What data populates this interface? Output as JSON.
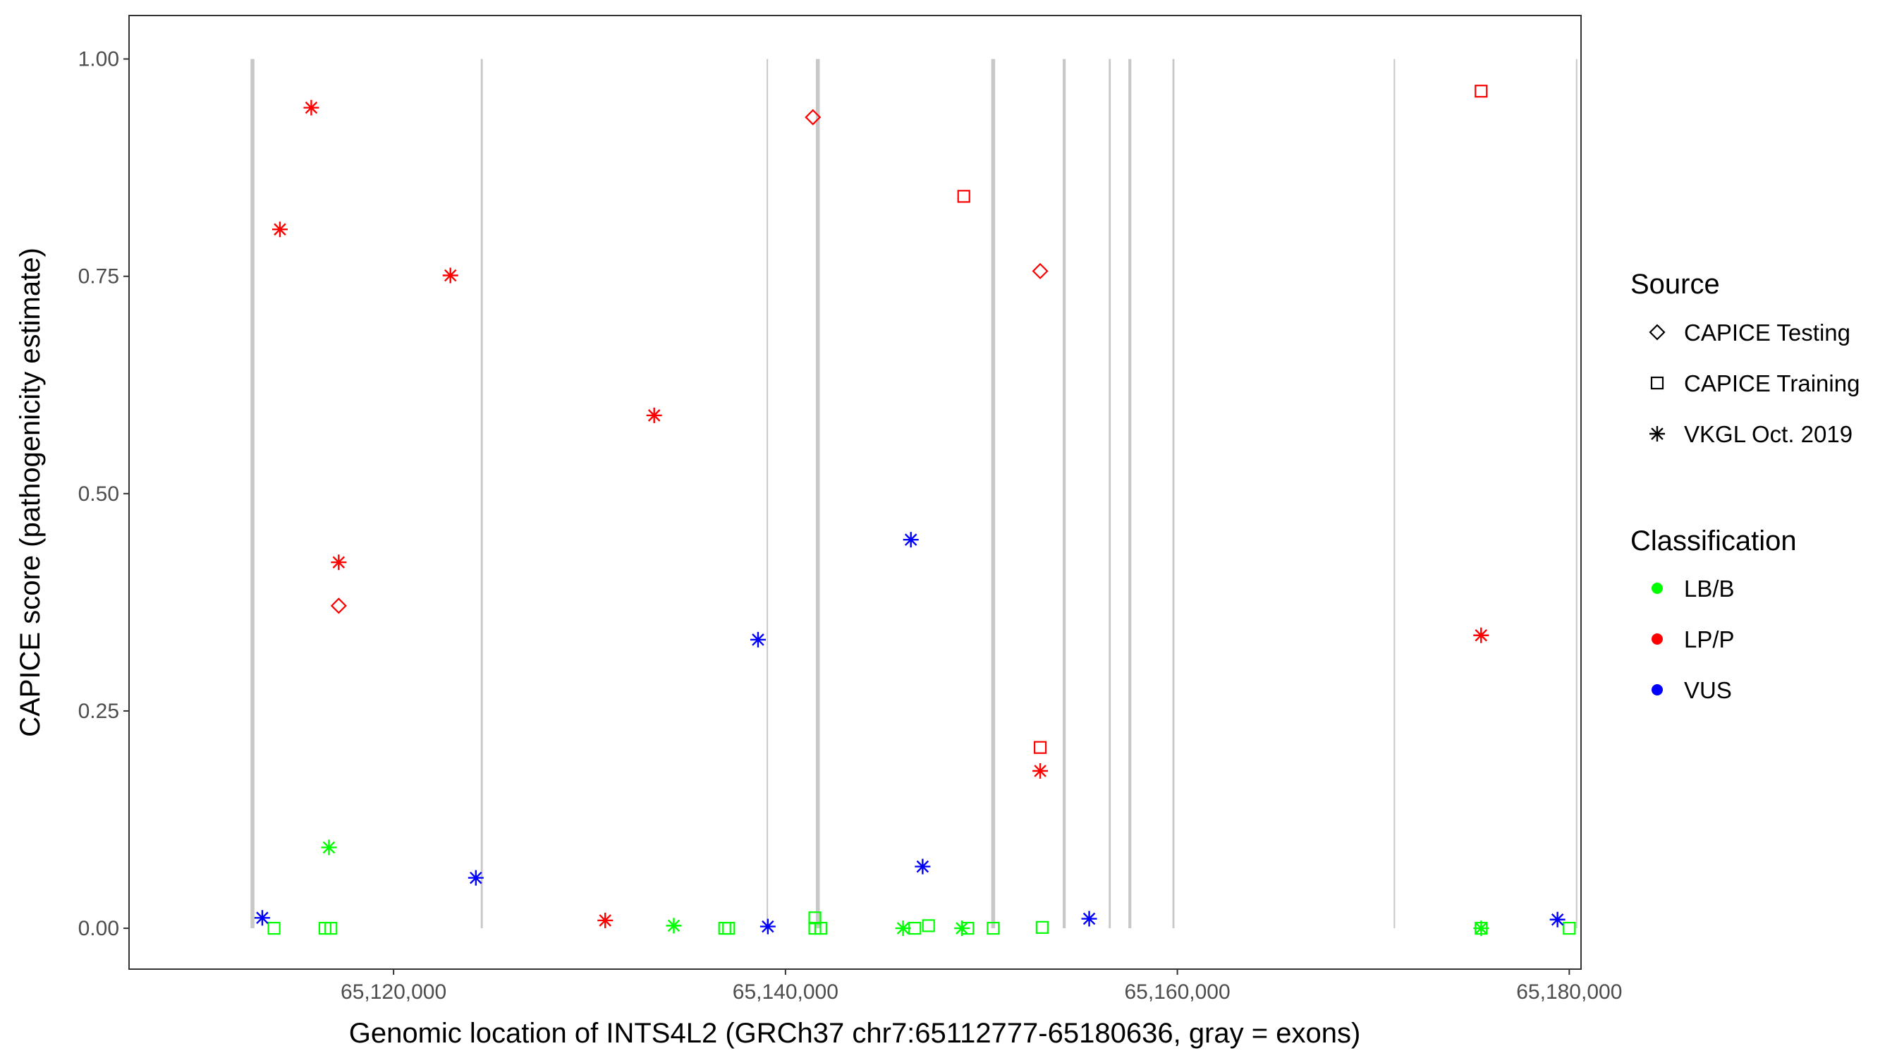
{
  "chart_data": {
    "type": "scatter",
    "title": "",
    "xlabel": "Genomic location of INTS4L2 (GRCh37 chr7:65112777-65180636, gray = exons)",
    "ylabel": "CAPICE score (pathogenicity estimate)",
    "xlim": [
      65106500,
      65180600
    ],
    "ylim": [
      -0.047,
      1.05
    ],
    "x_ticks": [
      65120000,
      65140000,
      65160000,
      65180000
    ],
    "x_tick_labels": [
      "65,120,000",
      "65,140,000",
      "65,160,000",
      "65,180,000"
    ],
    "y_ticks": [
      0,
      0.25,
      0.5,
      0.75,
      1
    ],
    "y_tick_labels": [
      "0.00",
      "0.25",
      "0.50",
      "0.75",
      "1.00"
    ],
    "grid": false,
    "legend_position": "right",
    "exons": [
      [
        65112700,
        65112900
      ],
      [
        65124450,
        65124550
      ],
      [
        65139050,
        65139100
      ],
      [
        65141550,
        65141750
      ],
      [
        65150500,
        65150700
      ],
      [
        65154150,
        65154300
      ],
      [
        65156500,
        65156600
      ],
      [
        65157500,
        65157650
      ],
      [
        65159750,
        65159850
      ],
      [
        65171050,
        65171100
      ],
      [
        65180350,
        65180400
      ]
    ],
    "exon_color": "#c8c8c8",
    "legend_source": {
      "title": "Source",
      "entries": [
        {
          "label": "CAPICE Testing",
          "shape": "diamond"
        },
        {
          "label": "CAPICE Training",
          "shape": "square"
        },
        {
          "label": "VKGL Oct. 2019",
          "shape": "asterisk"
        }
      ]
    },
    "legend_classification": {
      "title": "Classification",
      "entries": [
        {
          "label": "LB/B",
          "color": "#00ff00"
        },
        {
          "label": "LP/P",
          "color": "#ff0000"
        },
        {
          "label": "VUS",
          "color": "#0000ff"
        }
      ]
    },
    "points": [
      {
        "x": 65115800,
        "y": 0.944,
        "shape": "asterisk",
        "class": "LP/P"
      },
      {
        "x": 65114200,
        "y": 0.804,
        "shape": "asterisk",
        "class": "LP/P"
      },
      {
        "x": 65122900,
        "y": 0.751,
        "shape": "asterisk",
        "class": "LP/P"
      },
      {
        "x": 65133300,
        "y": 0.59,
        "shape": "asterisk",
        "class": "LP/P"
      },
      {
        "x": 65117200,
        "y": 0.421,
        "shape": "asterisk",
        "class": "LP/P"
      },
      {
        "x": 65130800,
        "y": 0.009,
        "shape": "asterisk",
        "class": "LP/P"
      },
      {
        "x": 65153000,
        "y": 0.181,
        "shape": "asterisk",
        "class": "LP/P"
      },
      {
        "x": 65175500,
        "y": 0.337,
        "shape": "asterisk",
        "class": "LP/P"
      },
      {
        "x": 65141400,
        "y": 0.933,
        "shape": "diamond",
        "class": "LP/P"
      },
      {
        "x": 65117200,
        "y": 0.371,
        "shape": "diamond",
        "class": "LP/P"
      },
      {
        "x": 65153000,
        "y": 0.756,
        "shape": "diamond",
        "class": "LP/P"
      },
      {
        "x": 65149100,
        "y": 0.842,
        "shape": "square",
        "class": "LP/P"
      },
      {
        "x": 65153000,
        "y": 0.208,
        "shape": "square",
        "class": "LP/P"
      },
      {
        "x": 65175500,
        "y": 0.963,
        "shape": "square",
        "class": "LP/P"
      },
      {
        "x": 65116700,
        "y": 0.093,
        "shape": "asterisk",
        "class": "LB/B"
      },
      {
        "x": 65134300,
        "y": 0.003,
        "shape": "asterisk",
        "class": "LB/B"
      },
      {
        "x": 65146000,
        "y": 0.0,
        "shape": "asterisk",
        "class": "LB/B"
      },
      {
        "x": 65149000,
        "y": 0.0,
        "shape": "asterisk",
        "class": "LB/B"
      },
      {
        "x": 65175500,
        "y": 0.0,
        "shape": "asterisk",
        "class": "LB/B"
      },
      {
        "x": 65113900,
        "y": 0.0,
        "shape": "square",
        "class": "LB/B"
      },
      {
        "x": 65116500,
        "y": 0.0,
        "shape": "square",
        "class": "LB/B"
      },
      {
        "x": 65116800,
        "y": 0.0,
        "shape": "square",
        "class": "LB/B"
      },
      {
        "x": 65136900,
        "y": 0.0,
        "shape": "square",
        "class": "LB/B"
      },
      {
        "x": 65137100,
        "y": 0.0,
        "shape": "square",
        "class": "LB/B"
      },
      {
        "x": 65141500,
        "y": 0.012,
        "shape": "square",
        "class": "LB/B"
      },
      {
        "x": 65141500,
        "y": 0.0,
        "shape": "square",
        "class": "LB/B"
      },
      {
        "x": 65141800,
        "y": 0.0,
        "shape": "square",
        "class": "LB/B"
      },
      {
        "x": 65146600,
        "y": 0.0,
        "shape": "square",
        "class": "LB/B"
      },
      {
        "x": 65147300,
        "y": 0.003,
        "shape": "square",
        "class": "LB/B"
      },
      {
        "x": 65149300,
        "y": 0.0,
        "shape": "square",
        "class": "LB/B"
      },
      {
        "x": 65150600,
        "y": 0.0,
        "shape": "square",
        "class": "LB/B"
      },
      {
        "x": 65153100,
        "y": 0.001,
        "shape": "square",
        "class": "LB/B"
      },
      {
        "x": 65175500,
        "y": 0.0,
        "shape": "square",
        "class": "LB/B"
      },
      {
        "x": 65180000,
        "y": 0.0,
        "shape": "square",
        "class": "LB/B"
      },
      {
        "x": 65113300,
        "y": 0.012,
        "shape": "asterisk",
        "class": "VUS"
      },
      {
        "x": 65124200,
        "y": 0.058,
        "shape": "asterisk",
        "class": "VUS"
      },
      {
        "x": 65138600,
        "y": 0.332,
        "shape": "asterisk",
        "class": "VUS"
      },
      {
        "x": 65139100,
        "y": 0.002,
        "shape": "asterisk",
        "class": "VUS"
      },
      {
        "x": 65146400,
        "y": 0.447,
        "shape": "asterisk",
        "class": "VUS"
      },
      {
        "x": 65147000,
        "y": 0.071,
        "shape": "asterisk",
        "class": "VUS"
      },
      {
        "x": 65155500,
        "y": 0.011,
        "shape": "asterisk",
        "class": "VUS"
      },
      {
        "x": 65179400,
        "y": 0.01,
        "shape": "asterisk",
        "class": "VUS"
      }
    ]
  }
}
